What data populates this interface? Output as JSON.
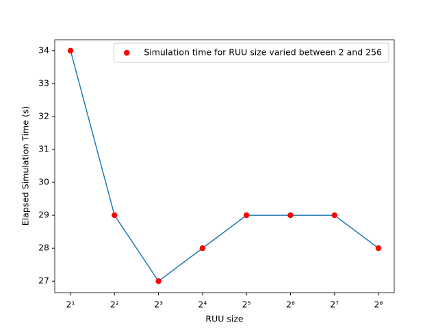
{
  "chart_data": {
    "type": "line",
    "x_label": "RUU size",
    "y_label": "Elapsed Simulation Time (s)",
    "x": [
      2,
      4,
      8,
      16,
      32,
      64,
      128,
      256
    ],
    "series": [
      {
        "name": "Simulation time for RUU size varied between 2 and 256",
        "line_color": "#1f77b4",
        "marker_color": "#ff0000",
        "values": [
          34,
          29,
          27,
          28,
          29,
          29,
          29,
          28
        ]
      }
    ],
    "x_log_base": 2,
    "xlim": [
      1.56,
      328
    ],
    "xticks": [
      {
        "value": 2,
        "label": "2¹"
      },
      {
        "value": 4,
        "label": "2²"
      },
      {
        "value": 8,
        "label": "2³"
      },
      {
        "value": 16,
        "label": "2⁴"
      },
      {
        "value": 32,
        "label": "2⁵"
      },
      {
        "value": 64,
        "label": "2⁶"
      },
      {
        "value": 128,
        "label": "2⁷"
      },
      {
        "value": 256,
        "label": "2⁸"
      }
    ],
    "ylim": [
      26.65,
      34.33
    ],
    "yticks": [
      27,
      28,
      29,
      30,
      31,
      32,
      33,
      34
    ],
    "legend": "upper right"
  }
}
